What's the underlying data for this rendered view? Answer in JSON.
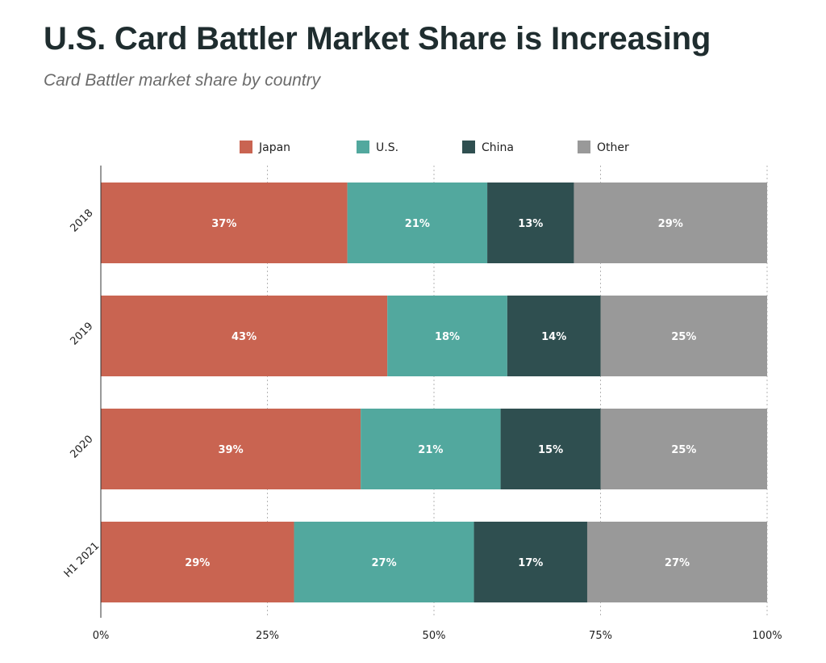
{
  "header": {
    "title": "U.S. Card Battler Market Share is Increasing",
    "subtitle": "Card Battler market share by country"
  },
  "colors": {
    "Japan": "#c96451",
    "U.S.": "#52a89e",
    "China": "#2f4f50",
    "Other": "#999999",
    "axis": "#333333",
    "grid": "#b5b5b5",
    "bar_label": "#ffffff"
  },
  "chart_data": {
    "type": "bar",
    "orientation": "horizontal",
    "stacked": true,
    "categories": [
      "2018",
      "2019",
      "2020",
      "H1 2021"
    ],
    "series": [
      {
        "name": "Japan",
        "values": [
          37,
          43,
          39,
          29
        ],
        "labels": [
          "37%",
          "43%",
          "39%",
          "29%"
        ]
      },
      {
        "name": "U.S.",
        "values": [
          21,
          18,
          21,
          27
        ],
        "labels": [
          "21%",
          "18%",
          "21%",
          "27%"
        ]
      },
      {
        "name": "China",
        "values": [
          13,
          14,
          15,
          17
        ],
        "labels": [
          "13%",
          "14%",
          "15%",
          "17%"
        ]
      },
      {
        "name": "Other",
        "values": [
          29,
          25,
          25,
          27
        ],
        "labels": [
          "29%",
          "25%",
          "25%",
          "27%"
        ]
      }
    ],
    "xlim": [
      0,
      100
    ],
    "xticks": [
      0,
      25,
      50,
      75,
      100
    ],
    "xtick_labels": [
      "0%",
      "25%",
      "50%",
      "75%",
      "100%"
    ],
    "grid": true,
    "legend_position": "top"
  }
}
